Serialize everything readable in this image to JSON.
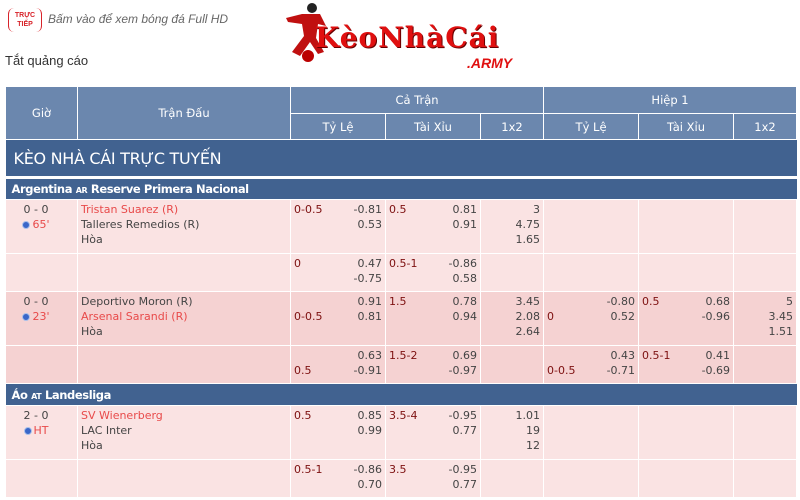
{
  "header": {
    "live_badge": "TRỰC TIẾP",
    "live_text": "Bấm vào để xem bóng đá Full HD",
    "logo_text": "KèoNhàCái",
    "logo_sub": ".ARMY",
    "ads_off": "Tắt quảng cáo"
  },
  "table": {
    "col_time": "Giờ",
    "col_match": "Trận Đấu",
    "group_full": "Cả Trận",
    "group_half": "Hiệp 1",
    "sub": [
      "Tỷ Lệ",
      "Tài Xỉu",
      "1x2",
      "Tỷ Lệ",
      "Tài Xỉu",
      "1x2"
    ],
    "title": "KÈO NHÀ CÁI TRỰC TUYẾN"
  },
  "leagues": [
    {
      "name": "Argentina",
      "code": "AR",
      "league": "Reserve Primera Nacional",
      "rows": [
        {
          "shade": "light",
          "score": "0 - 0",
          "minute": "65'",
          "teams": [
            "Tristan Suarez (R)",
            "Talleres Remedios (R)",
            "Hòa"
          ],
          "red_team": 0,
          "cells": [
            {
              "line": "0-0.5",
              "pos": 0,
              "vals": [
                "-0.81",
                "0.53"
              ]
            },
            {
              "line": "0.5",
              "pos": 0,
              "vals": [
                "0.81",
                "0.91"
              ]
            },
            {
              "x12": [
                "3",
                "4.75",
                "1.65"
              ]
            },
            {},
            {},
            {}
          ]
        },
        {
          "shade": "light",
          "cells": [
            {
              "line": "0",
              "pos": 0,
              "vals": [
                "0.47",
                "-0.75"
              ]
            },
            {
              "line": "0.5-1",
              "pos": 0,
              "vals": [
                "-0.86",
                "0.58"
              ]
            },
            {},
            {},
            {},
            {}
          ]
        },
        {
          "shade": "dark",
          "score": "0 - 0",
          "minute": "23'",
          "teams": [
            "Deportivo Moron (R)",
            "Arsenal Sarandi (R)",
            "Hòa"
          ],
          "red_team": 1,
          "cells": [
            {
              "line": "0-0.5",
              "pos": 1,
              "vals": [
                "0.91",
                "0.81"
              ]
            },
            {
              "line": "1.5",
              "pos": 0,
              "vals": [
                "0.78",
                "0.94"
              ]
            },
            {
              "x12": [
                "3.45",
                "2.08",
                "2.64"
              ]
            },
            {
              "line": "0",
              "pos": 1,
              "vals": [
                "-0.80",
                "0.52"
              ]
            },
            {
              "line": "0.5",
              "pos": 0,
              "vals": [
                "0.68",
                "-0.96"
              ]
            },
            {
              "x12": [
                "5",
                "3.45",
                "1.51"
              ]
            }
          ]
        },
        {
          "shade": "dark",
          "cells": [
            {
              "line": "0.5",
              "pos": 1,
              "vals": [
                "0.63",
                "-0.91"
              ]
            },
            {
              "line": "1.5-2",
              "pos": 0,
              "vals": [
                "0.69",
                "-0.97"
              ]
            },
            {},
            {
              "line": "0-0.5",
              "pos": 1,
              "vals": [
                "0.43",
                "-0.71"
              ]
            },
            {
              "line": "0.5-1",
              "pos": 0,
              "vals": [
                "0.41",
                "-0.69"
              ]
            },
            {}
          ]
        }
      ]
    },
    {
      "name": "Áo",
      "code": "AT",
      "league": "Landesliga",
      "rows": [
        {
          "shade": "light",
          "score": "2 - 0",
          "minute": "HT",
          "teams": [
            "SV Wienerberg",
            "LAC Inter",
            "Hòa"
          ],
          "red_team": 0,
          "cells": [
            {
              "line": "0.5",
              "pos": 0,
              "vals": [
                "0.85",
                "0.99"
              ]
            },
            {
              "line": "3.5-4",
              "pos": 0,
              "vals": [
                "-0.95",
                "0.77"
              ]
            },
            {
              "x12": [
                "1.01",
                "19",
                "12"
              ]
            },
            {},
            {},
            {}
          ]
        },
        {
          "shade": "light",
          "cells": [
            {
              "line": "0.5-1",
              "pos": 0,
              "vals": [
                "-0.86",
                "0.70"
              ]
            },
            {
              "line": "3.5",
              "pos": 0,
              "vals": [
                "-0.95",
                "0.77"
              ]
            },
            {},
            {},
            {},
            {}
          ]
        }
      ]
    }
  ],
  "colors": {
    "header": "#6b87ae",
    "title_bar": "#416290",
    "row_light": "#fae3e3",
    "row_dark": "#f5d2d2",
    "team_red": "#e84a4a",
    "line_text": "#7d1010"
  }
}
